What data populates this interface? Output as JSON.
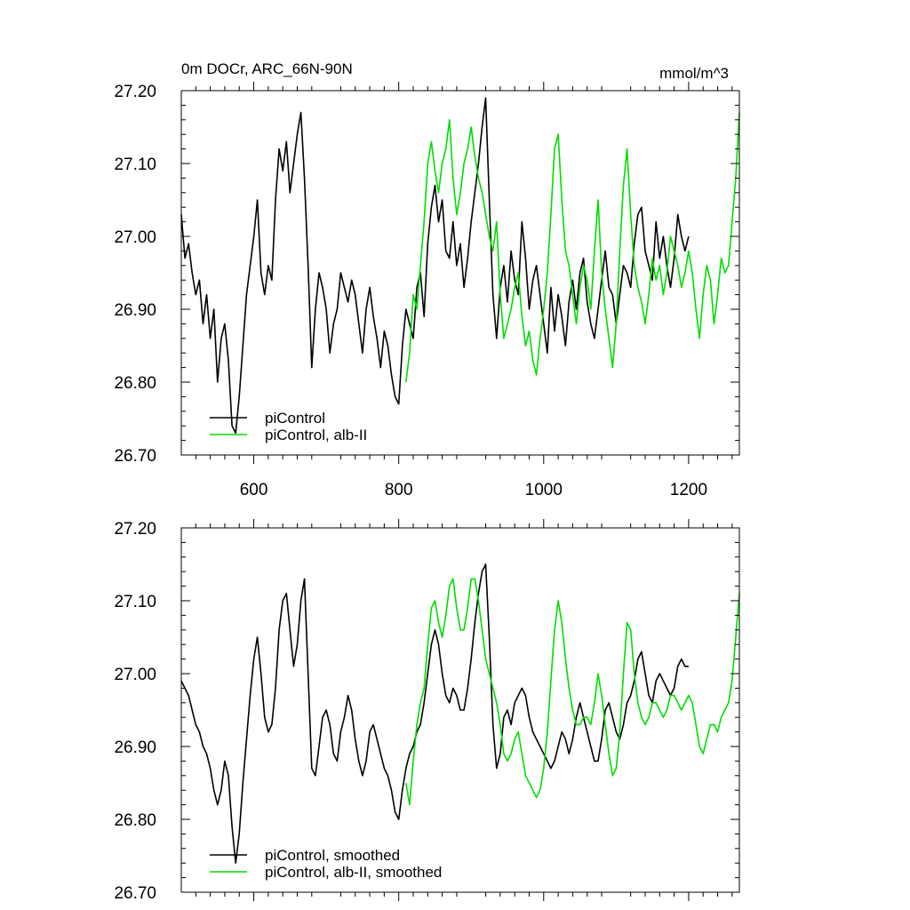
{
  "chart_data": [
    {
      "type": "line",
      "title": "0m DOCr, ARC_66N-90N",
      "units_label": "mmol/m^3",
      "xlim": [
        500,
        1270
      ],
      "ylim": [
        26.7,
        27.2
      ],
      "x_ticks": [
        600,
        800,
        1000,
        1200
      ],
      "y_ticks": [
        26.7,
        26.8,
        26.9,
        27.0,
        27.1,
        27.2
      ],
      "y_tick_labels": [
        "26.70",
        "26.80",
        "26.90",
        "27.00",
        "27.10",
        "27.20"
      ],
      "x_tick_labels_shown": true,
      "grid": false,
      "legend_position": "bottom-left",
      "series": [
        {
          "name": "piControl",
          "color": "#000000",
          "x": [
            500,
            505,
            510,
            515,
            520,
            525,
            530,
            535,
            540,
            545,
            550,
            555,
            560,
            565,
            570,
            575,
            580,
            585,
            590,
            595,
            600,
            605,
            610,
            615,
            620,
            625,
            630,
            635,
            640,
            645,
            650,
            655,
            660,
            665,
            670,
            675,
            680,
            685,
            690,
            695,
            700,
            705,
            710,
            715,
            720,
            725,
            730,
            735,
            740,
            745,
            750,
            755,
            760,
            765,
            770,
            775,
            780,
            785,
            790,
            795,
            800,
            805,
            810,
            815,
            820,
            825,
            830,
            835,
            840,
            845,
            850,
            855,
            860,
            865,
            870,
            875,
            880,
            885,
            890,
            895,
            900,
            905,
            910,
            915,
            920,
            925,
            930,
            935,
            940,
            945,
            950,
            955,
            960,
            965,
            970,
            975,
            980,
            985,
            990,
            995,
            1000,
            1005,
            1010,
            1015,
            1020,
            1025,
            1030,
            1035,
            1040,
            1045,
            1050,
            1055,
            1060,
            1065,
            1070,
            1075,
            1080,
            1085,
            1090,
            1095,
            1100,
            1105,
            1110,
            1115,
            1120,
            1125,
            1130,
            1135,
            1140,
            1145,
            1150,
            1155,
            1160,
            1165,
            1170,
            1175,
            1180,
            1185,
            1190,
            1195,
            1200
          ],
          "y": [
            27.03,
            26.97,
            26.99,
            26.95,
            26.92,
            26.94,
            26.88,
            26.92,
            26.86,
            26.9,
            26.8,
            26.86,
            26.88,
            26.83,
            26.74,
            26.73,
            26.78,
            26.85,
            26.92,
            26.96,
            27.0,
            27.05,
            26.95,
            26.92,
            26.96,
            26.94,
            27.05,
            27.12,
            27.09,
            27.13,
            27.06,
            27.1,
            27.14,
            27.17,
            27.08,
            26.96,
            26.82,
            26.9,
            26.95,
            26.93,
            26.9,
            26.84,
            26.88,
            26.9,
            26.95,
            26.93,
            26.91,
            26.94,
            26.92,
            26.88,
            26.84,
            26.9,
            26.93,
            26.89,
            26.86,
            26.82,
            26.87,
            26.85,
            26.81,
            26.78,
            26.77,
            26.85,
            26.9,
            26.88,
            26.86,
            26.93,
            26.95,
            26.89,
            26.99,
            27.04,
            27.07,
            27.02,
            27.05,
            26.98,
            26.97,
            27.02,
            26.96,
            26.99,
            26.93,
            26.97,
            27.02,
            27.06,
            27.1,
            27.15,
            27.19,
            27.05,
            26.92,
            26.86,
            26.93,
            26.96,
            26.91,
            26.98,
            26.94,
            26.92,
            27.02,
            26.97,
            26.9,
            26.94,
            26.96,
            26.92,
            26.88,
            26.84,
            26.93,
            26.87,
            26.92,
            26.89,
            26.85,
            26.91,
            26.94,
            26.9,
            26.95,
            26.97,
            26.91,
            26.88,
            26.86,
            26.9,
            26.94,
            26.98,
            26.93,
            26.92,
            26.88,
            26.92,
            26.96,
            26.95,
            26.93,
            26.99,
            27.03,
            27.04,
            26.98,
            26.96,
            26.94,
            27.02,
            26.97,
            27.0,
            26.96,
            26.93,
            26.97,
            27.03,
            27.0,
            26.98,
            27.0
          ]
        },
        {
          "name": "piControl, alb-II",
          "color": "#00dd00",
          "x": [
            810,
            815,
            820,
            825,
            830,
            835,
            840,
            845,
            850,
            855,
            860,
            865,
            870,
            875,
            880,
            885,
            890,
            895,
            900,
            905,
            910,
            915,
            920,
            925,
            930,
            935,
            940,
            945,
            950,
            955,
            960,
            965,
            970,
            975,
            980,
            985,
            990,
            995,
            1000,
            1005,
            1010,
            1015,
            1020,
            1025,
            1030,
            1035,
            1040,
            1045,
            1050,
            1055,
            1060,
            1065,
            1070,
            1075,
            1080,
            1085,
            1090,
            1095,
            1100,
            1105,
            1110,
            1115,
            1120,
            1125,
            1130,
            1135,
            1140,
            1145,
            1150,
            1155,
            1160,
            1165,
            1170,
            1175,
            1180,
            1185,
            1190,
            1195,
            1200,
            1205,
            1210,
            1215,
            1220,
            1225,
            1230,
            1235,
            1240,
            1245,
            1250,
            1255,
            1260,
            1265,
            1270
          ],
          "y": [
            26.8,
            26.84,
            26.92,
            26.9,
            26.96,
            27.02,
            27.1,
            27.13,
            27.09,
            27.06,
            27.1,
            27.12,
            27.16,
            27.08,
            27.03,
            27.06,
            27.1,
            27.12,
            27.15,
            27.11,
            27.08,
            27.06,
            27.03,
            27.0,
            26.98,
            27.02,
            26.92,
            26.86,
            26.88,
            26.9,
            26.93,
            26.95,
            26.89,
            26.85,
            26.87,
            26.83,
            26.81,
            26.86,
            26.9,
            26.95,
            27.03,
            27.12,
            27.14,
            27.05,
            26.98,
            26.96,
            26.92,
            26.88,
            26.93,
            26.96,
            26.94,
            26.9,
            26.98,
            27.05,
            26.95,
            26.9,
            26.86,
            26.82,
            26.88,
            26.98,
            27.07,
            27.12,
            27.03,
            26.96,
            26.93,
            26.91,
            26.88,
            26.92,
            26.97,
            26.94,
            26.96,
            26.92,
            26.95,
            27.0,
            26.98,
            26.96,
            26.93,
            26.95,
            26.98,
            26.95,
            26.9,
            26.86,
            26.92,
            26.96,
            26.94,
            26.88,
            26.92,
            26.97,
            26.95,
            26.96,
            27.02,
            27.08,
            27.17
          ]
        }
      ]
    },
    {
      "type": "line",
      "xlim": [
        500,
        1270
      ],
      "ylim": [
        26.7,
        27.2
      ],
      "x_ticks": [
        600,
        800,
        1000,
        1200
      ],
      "y_ticks": [
        26.7,
        26.8,
        26.9,
        27.0,
        27.1,
        27.2
      ],
      "y_tick_labels": [
        "26.70",
        "26.80",
        "26.90",
        "27.00",
        "27.10",
        "27.20"
      ],
      "x_tick_labels_shown": false,
      "grid": false,
      "legend_position": "bottom-left",
      "series": [
        {
          "name": "piControl, smoothed",
          "color": "#000000",
          "x": [
            500,
            505,
            510,
            515,
            520,
            525,
            530,
            535,
            540,
            545,
            550,
            555,
            560,
            565,
            570,
            575,
            580,
            585,
            590,
            595,
            600,
            605,
            610,
            615,
            620,
            625,
            630,
            635,
            640,
            645,
            650,
            655,
            660,
            665,
            670,
            675,
            680,
            685,
            690,
            695,
            700,
            705,
            710,
            715,
            720,
            725,
            730,
            735,
            740,
            745,
            750,
            755,
            760,
            765,
            770,
            775,
            780,
            785,
            790,
            795,
            800,
            805,
            810,
            815,
            820,
            825,
            830,
            835,
            840,
            845,
            850,
            855,
            860,
            865,
            870,
            875,
            880,
            885,
            890,
            895,
            900,
            905,
            910,
            915,
            920,
            925,
            930,
            935,
            940,
            945,
            950,
            955,
            960,
            965,
            970,
            975,
            980,
            985,
            990,
            995,
            1000,
            1005,
            1010,
            1015,
            1020,
            1025,
            1030,
            1035,
            1040,
            1045,
            1050,
            1055,
            1060,
            1065,
            1070,
            1075,
            1080,
            1085,
            1090,
            1095,
            1100,
            1105,
            1110,
            1115,
            1120,
            1125,
            1130,
            1135,
            1140,
            1145,
            1150,
            1155,
            1160,
            1165,
            1170,
            1175,
            1180,
            1185,
            1190,
            1195,
            1200
          ],
          "y": [
            26.99,
            26.98,
            26.97,
            26.95,
            26.93,
            26.92,
            26.9,
            26.89,
            26.87,
            26.84,
            26.82,
            26.84,
            26.88,
            26.86,
            26.79,
            26.74,
            26.78,
            26.85,
            26.91,
            26.97,
            27.02,
            27.05,
            27.0,
            26.94,
            26.92,
            26.93,
            26.98,
            27.06,
            27.1,
            27.11,
            27.06,
            27.01,
            27.04,
            27.1,
            27.13,
            27.0,
            26.87,
            26.86,
            26.9,
            26.94,
            26.95,
            26.93,
            26.89,
            26.88,
            26.92,
            26.94,
            26.97,
            26.95,
            26.91,
            26.88,
            26.86,
            26.88,
            26.92,
            26.93,
            26.91,
            26.89,
            26.87,
            26.86,
            26.84,
            26.81,
            26.8,
            26.84,
            26.87,
            26.89,
            26.9,
            26.92,
            26.93,
            26.96,
            27.0,
            27.04,
            27.06,
            27.04,
            27.0,
            26.97,
            26.96,
            26.98,
            26.97,
            26.95,
            26.95,
            26.98,
            27.02,
            27.07,
            27.11,
            27.14,
            27.15,
            27.05,
            26.93,
            26.87,
            26.89,
            26.94,
            26.95,
            26.93,
            26.96,
            26.97,
            26.98,
            26.97,
            26.94,
            26.92,
            26.91,
            26.9,
            26.89,
            26.88,
            26.87,
            26.88,
            26.9,
            26.92,
            26.91,
            26.89,
            26.91,
            26.94,
            26.96,
            26.94,
            26.92,
            26.9,
            26.88,
            26.88,
            26.91,
            26.95,
            26.96,
            26.94,
            26.92,
            26.91,
            26.93,
            26.96,
            26.97,
            26.99,
            27.02,
            27.03,
            27.0,
            26.97,
            26.96,
            26.99,
            27.0,
            26.99,
            26.98,
            26.97,
            26.98,
            27.01,
            27.02,
            27.01,
            27.01
          ]
        },
        {
          "name": "piControl, alb-II, smoothed",
          "color": "#00dd00",
          "x": [
            810,
            815,
            820,
            825,
            830,
            835,
            840,
            845,
            850,
            855,
            860,
            865,
            870,
            875,
            880,
            885,
            890,
            895,
            900,
            905,
            910,
            915,
            920,
            925,
            930,
            935,
            940,
            945,
            950,
            955,
            960,
            965,
            970,
            975,
            980,
            985,
            990,
            995,
            1000,
            1005,
            1010,
            1015,
            1020,
            1025,
            1030,
            1035,
            1040,
            1045,
            1050,
            1055,
            1060,
            1065,
            1070,
            1075,
            1080,
            1085,
            1090,
            1095,
            1100,
            1105,
            1110,
            1115,
            1120,
            1125,
            1130,
            1135,
            1140,
            1145,
            1150,
            1155,
            1160,
            1165,
            1170,
            1175,
            1180,
            1185,
            1190,
            1195,
            1200,
            1205,
            1210,
            1215,
            1220,
            1225,
            1230,
            1235,
            1240,
            1245,
            1250,
            1255,
            1260,
            1265,
            1270
          ],
          "y": [
            26.85,
            26.82,
            26.88,
            26.93,
            26.96,
            26.98,
            27.04,
            27.09,
            27.1,
            27.07,
            27.05,
            27.08,
            27.12,
            27.13,
            27.09,
            27.06,
            27.06,
            27.09,
            27.13,
            27.13,
            27.1,
            27.06,
            27.02,
            27.0,
            26.98,
            26.96,
            26.93,
            26.89,
            26.88,
            26.89,
            26.91,
            26.92,
            26.89,
            26.86,
            26.85,
            26.84,
            26.83,
            26.84,
            26.87,
            26.92,
            26.99,
            27.06,
            27.1,
            27.07,
            27.02,
            26.98,
            26.95,
            26.93,
            26.93,
            26.94,
            26.94,
            26.93,
            26.96,
            27.0,
            26.97,
            26.93,
            26.89,
            26.86,
            26.87,
            26.92,
            27.0,
            27.07,
            27.06,
            27.0,
            26.96,
            26.94,
            26.93,
            26.94,
            26.96,
            26.96,
            26.95,
            26.94,
            26.95,
            26.97,
            26.97,
            26.96,
            26.95,
            26.96,
            26.97,
            26.96,
            26.93,
            26.9,
            26.89,
            26.91,
            26.93,
            26.93,
            26.92,
            26.94,
            26.95,
            26.96,
            26.99,
            27.05,
            27.11
          ]
        }
      ]
    }
  ]
}
